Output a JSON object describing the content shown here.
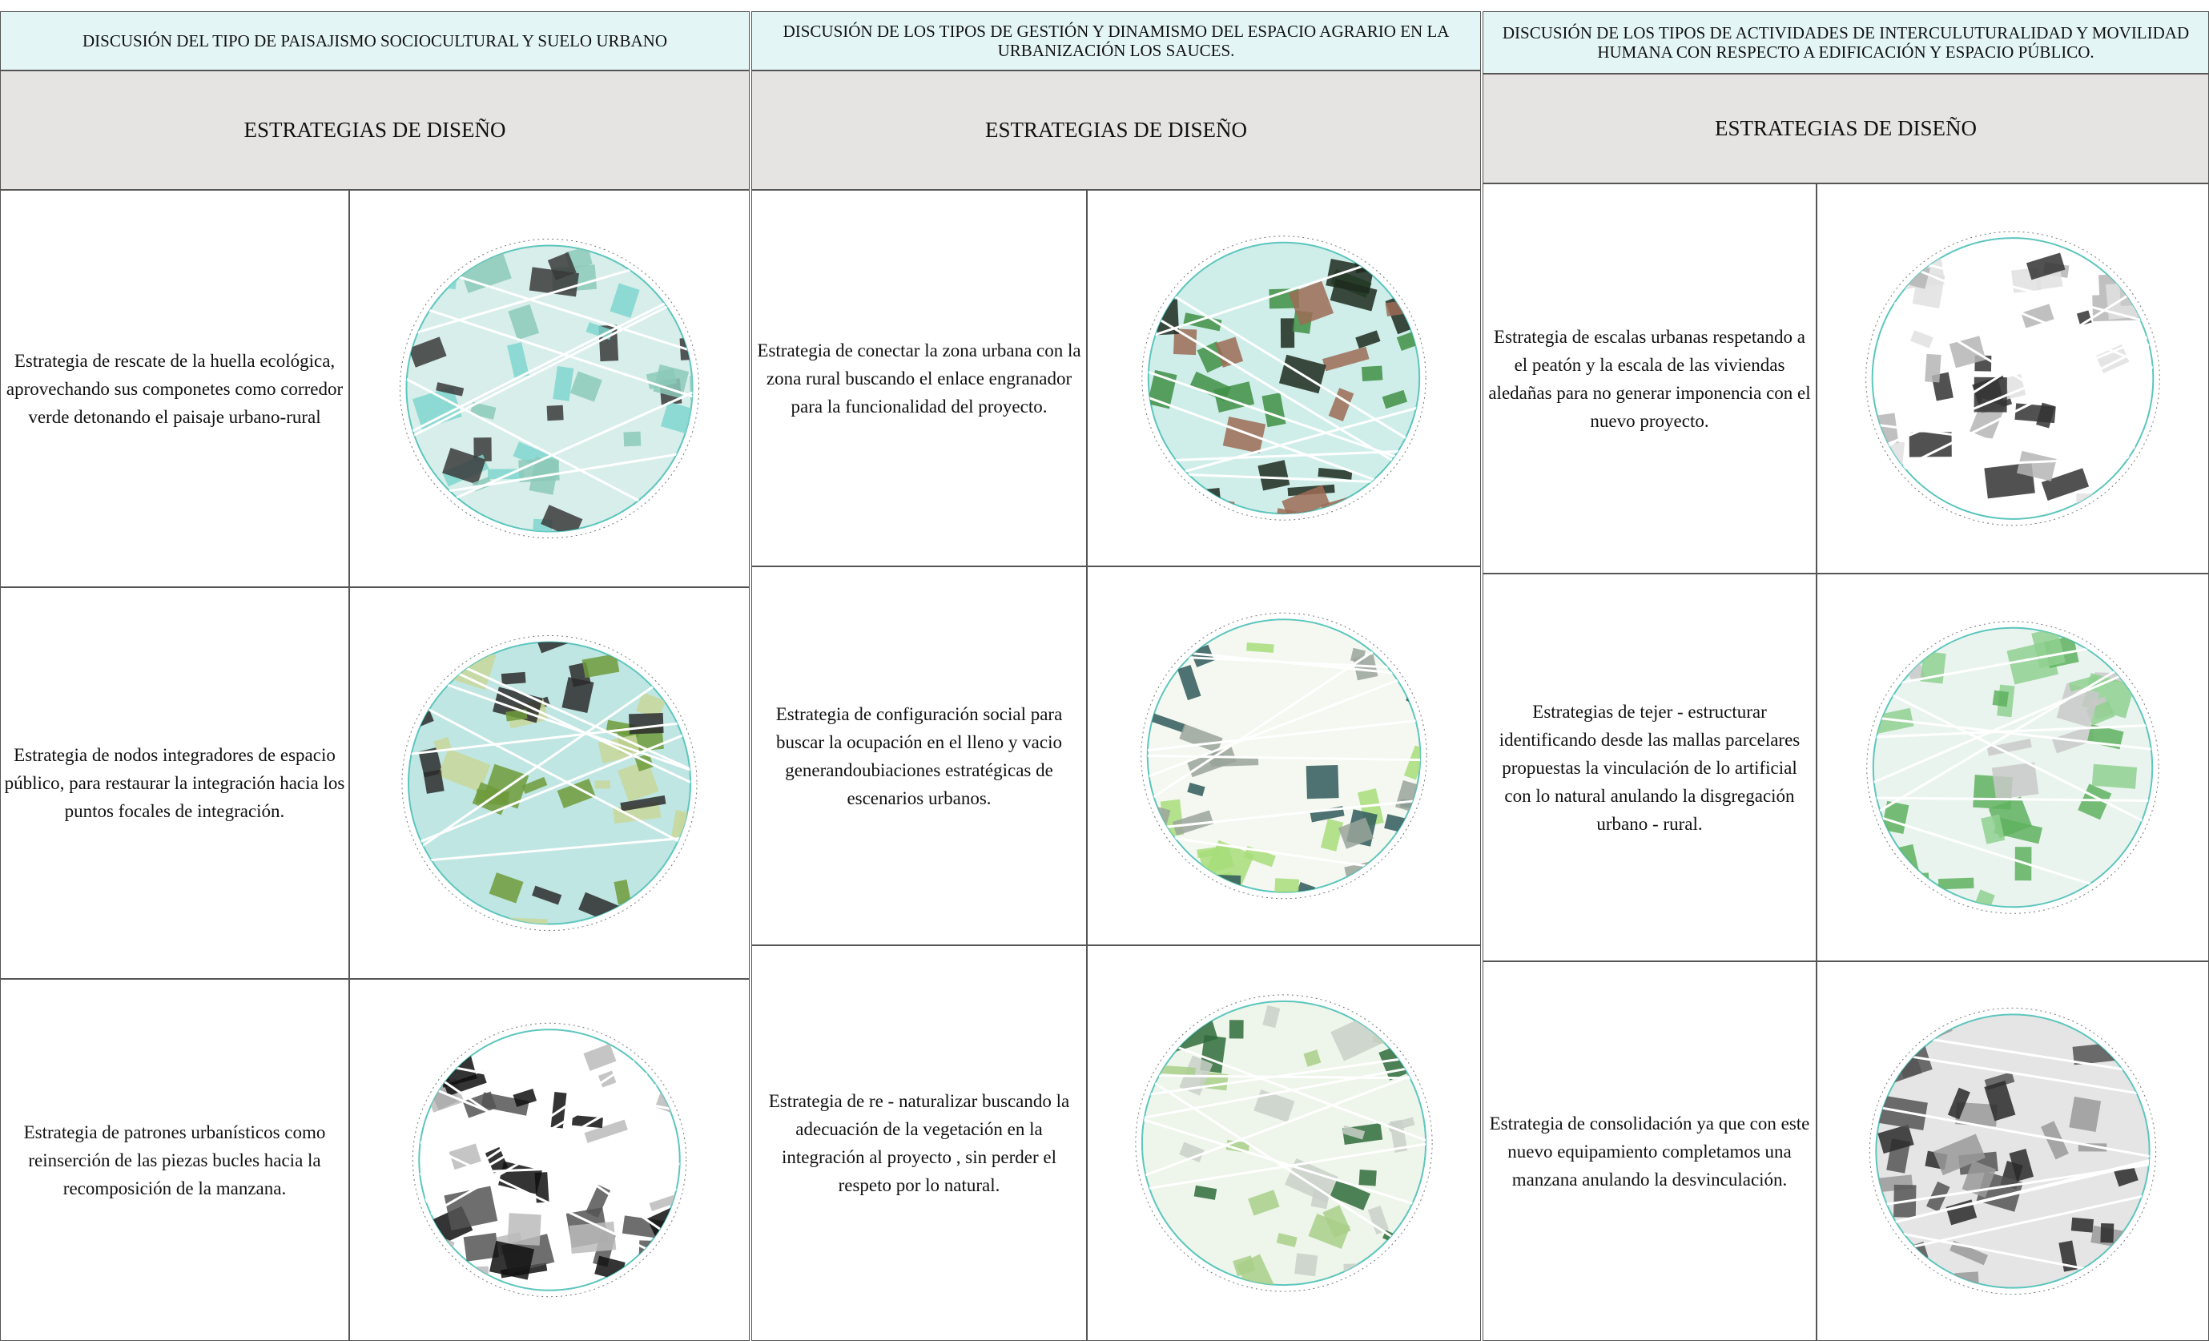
{
  "panels": [
    {
      "title": "DISCUSIÓN DEL TIPO DE PAISAJISMO SOCIOCULTURAL Y SUELO URBANO",
      "subtitle": "ESTRATEGIAS DE DISEÑO",
      "rows": [
        {
          "text": "Estrategia de rescate de la huella ecológica, aprovechando sus componetes como corredor verde detonando el paisaje urbano-rural"
        },
        {
          "text": "Estrategia de nodos integradores de espacio público, para restaurar la integración hacia los puntos focales de integración."
        },
        {
          "text": "Estrategia de patrones urbanísticos como reinserción de las piezas bucles  hacia la recomposición de la manzana."
        }
      ]
    },
    {
      "title": "DISCUSIÓN DE LOS TIPOS DE GESTIÓN Y DINAMISMO DEL ESPACIO  AGRARIO EN LA URBANIZACIÓN LOS SAUCES.",
      "subtitle": "ESTRATEGIAS DE DISEÑO",
      "rows": [
        {
          "text": "Estrategia de conectar la zona urbana con la zona rural buscando el enlace engranador para la funcionalidad del proyecto."
        },
        {
          "text": "Estrategia de configuración social para buscar la ocupación en el lleno y vacio generandoubiaciones estratégicas de escenarios urbanos."
        },
        {
          "text": "Estrategia de re - naturalizar buscando la adecuación de la vegetación en la integración al proyecto , sin perder el respeto por lo natural."
        }
      ]
    },
    {
      "title": "DISCUSIÓN DE LOS TIPOS DE ACTIVIDADES DE INTERCULUTURALIDAD Y MOVILIDAD HUMANA CON RESPECTO A EDIFICACIÓN Y ESPACIO PÚBLICO.",
      "subtitle": "ESTRATEGIAS DE DISEÑO",
      "rows": [
        {
          "text": "Estrategia de escalas urbanas respetando a el peatón y la escala de las viviendas aledañas para no generar imponencia con el nuevo proyecto."
        },
        {
          "text": "Estrategias de tejer - estructurar identificando desde las mallas parcelares propuestas la vinculación de lo artificial con lo natural anulando la disgregación urbano - rural."
        },
        {
          "text": "Estrategia de consolidación ya que con este nuevo equipamiento completamos una manzana anulando la desvinculación."
        }
      ]
    }
  ]
}
